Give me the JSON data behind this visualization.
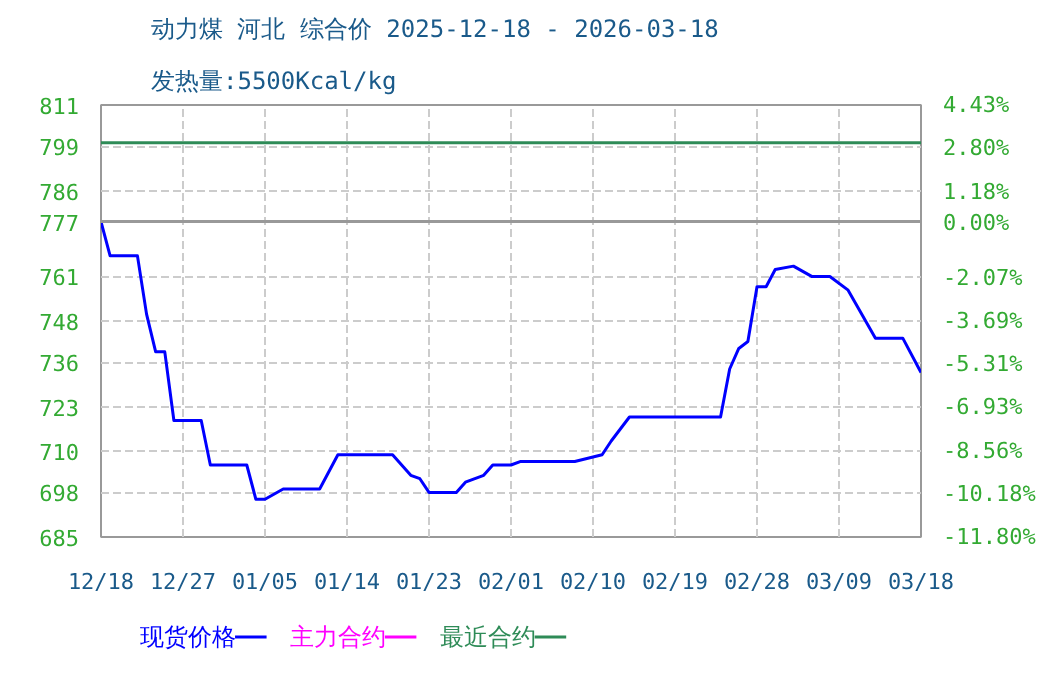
{
  "chart_data": {
    "type": "line",
    "title": "动力煤 河北 综合价 2025-12-18 - 2026-03-18",
    "subtitle": "发热量:5500Kcal/kg",
    "series": [
      {
        "name": "现货价格",
        "color": "#0000ff",
        "x": [
          "2025-12-18",
          "2025-12-19",
          "2025-12-22",
          "2025-12-23",
          "2025-12-24",
          "2025-12-25",
          "2025-12-26",
          "2025-12-29",
          "2025-12-30",
          "2026-01-03",
          "2026-01-04",
          "2026-01-05",
          "2026-01-07",
          "2026-01-11",
          "2026-01-13",
          "2026-01-19",
          "2026-01-21",
          "2026-01-22",
          "2026-01-23",
          "2026-01-26",
          "2026-01-27",
          "2026-01-29",
          "2026-01-30",
          "2026-02-01",
          "2026-02-02",
          "2026-02-08",
          "2026-02-11",
          "2026-02-12",
          "2026-02-14",
          "2026-02-24",
          "2026-02-25",
          "2026-02-26",
          "2026-02-27",
          "2026-02-28",
          "2026-03-01",
          "2026-03-02",
          "2026-03-04",
          "2026-03-06",
          "2026-03-08",
          "2026-03-10",
          "2026-03-13",
          "2026-03-16",
          "2026-03-18"
        ],
        "values": [
          777,
          767,
          767,
          750,
          739,
          739,
          719,
          719,
          706,
          706,
          696,
          696,
          699,
          699,
          709,
          709,
          703,
          702,
          698,
          698,
          701,
          703,
          706,
          706,
          707,
          707,
          709,
          713,
          720,
          720,
          734,
          740,
          742,
          758,
          758,
          763,
          764,
          761,
          761,
          757,
          743,
          743,
          733
        ]
      },
      {
        "name": "主力合约",
        "color": "#ff00ff"
      },
      {
        "name": "最近合约",
        "color": "#2e8b57",
        "x": [
          "2025-12-18",
          "2026-03-18"
        ],
        "values": [
          800,
          800
        ]
      }
    ],
    "xlim": [
      "2025-12-18",
      "2026-03-18"
    ],
    "xticks": [
      {
        "value": "2025-12-18",
        "label": "12/18"
      },
      {
        "value": "2025-12-27",
        "label": "12/27"
      },
      {
        "value": "2026-01-05",
        "label": "01/05"
      },
      {
        "value": "2026-01-14",
        "label": "01/14"
      },
      {
        "value": "2026-01-23",
        "label": "01/23"
      },
      {
        "value": "2026-02-01",
        "label": "02/01"
      },
      {
        "value": "2026-02-10",
        "label": "02/10"
      },
      {
        "value": "2026-02-19",
        "label": "02/19"
      },
      {
        "value": "2026-02-28",
        "label": "02/28"
      },
      {
        "value": "2026-03-09",
        "label": "03/09"
      },
      {
        "value": "2026-03-18",
        "label": "03/18"
      }
    ],
    "ylim": [
      685,
      811
    ],
    "yticks": [
      685,
      698,
      710,
      723,
      736,
      748,
      761,
      777,
      786,
      799,
      811
    ],
    "y2lim": [
      -11.8,
      4.43
    ],
    "y2ticks": [
      {
        "value": -11.8,
        "label": "-11.80%"
      },
      {
        "value": -10.18,
        "label": "-10.18%"
      },
      {
        "value": -8.56,
        "label": "-8.56%"
      },
      {
        "value": -6.93,
        "label": "-6.93%"
      },
      {
        "value": -5.31,
        "label": "-5.31%"
      },
      {
        "value": -3.69,
        "label": "-3.69%"
      },
      {
        "value": -2.07,
        "label": "-2.07%"
      },
      {
        "value": 0,
        "label": "0.00%"
      },
      {
        "value": 1.18,
        "label": "1.18%"
      },
      {
        "value": 2.8,
        "label": "2.80%"
      },
      {
        "value": 4.43,
        "label": "4.43%"
      }
    ],
    "ref_lines": [
      {
        "axis": "y",
        "value": 777,
        "color": "#999999"
      }
    ],
    "grid": true,
    "legend": "bottom",
    "line_style": "solid",
    "marker": "none"
  }
}
